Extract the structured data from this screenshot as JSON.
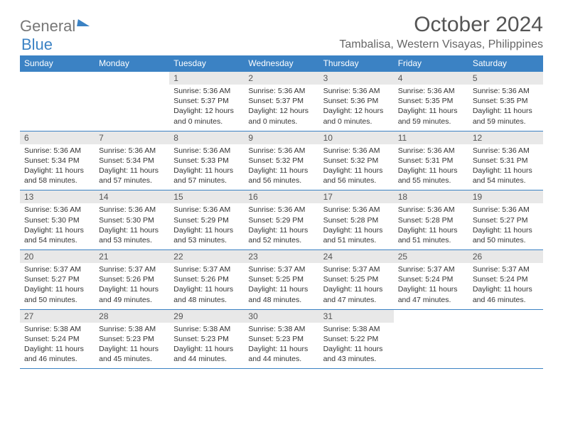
{
  "brand": {
    "part1": "General",
    "part2": "Blue"
  },
  "title": "October 2024",
  "location": "Tambalisa, Western Visayas, Philippines",
  "styling": {
    "header_bg": "#3b82c4",
    "header_text": "#ffffff",
    "daynum_bg": "#e8e8e8",
    "daynum_color": "#555555",
    "body_text": "#333333",
    "title_color": "#555555",
    "subtitle_color": "#666666",
    "week_border": "#3b82c4",
    "body_fontsize": 10.5,
    "header_fontsize": 12,
    "title_fontsize": 30,
    "subtitle_fontsize": 16
  },
  "day_headers": [
    "Sunday",
    "Monday",
    "Tuesday",
    "Wednesday",
    "Thursday",
    "Friday",
    "Saturday"
  ],
  "weeks": [
    [
      {
        "n": "",
        "sr": "",
        "ss": "",
        "dl": ""
      },
      {
        "n": "",
        "sr": "",
        "ss": "",
        "dl": ""
      },
      {
        "n": "1",
        "sr": "Sunrise: 5:36 AM",
        "ss": "Sunset: 5:37 PM",
        "dl": "Daylight: 12 hours and 0 minutes."
      },
      {
        "n": "2",
        "sr": "Sunrise: 5:36 AM",
        "ss": "Sunset: 5:37 PM",
        "dl": "Daylight: 12 hours and 0 minutes."
      },
      {
        "n": "3",
        "sr": "Sunrise: 5:36 AM",
        "ss": "Sunset: 5:36 PM",
        "dl": "Daylight: 12 hours and 0 minutes."
      },
      {
        "n": "4",
        "sr": "Sunrise: 5:36 AM",
        "ss": "Sunset: 5:35 PM",
        "dl": "Daylight: 11 hours and 59 minutes."
      },
      {
        "n": "5",
        "sr": "Sunrise: 5:36 AM",
        "ss": "Sunset: 5:35 PM",
        "dl": "Daylight: 11 hours and 59 minutes."
      }
    ],
    [
      {
        "n": "6",
        "sr": "Sunrise: 5:36 AM",
        "ss": "Sunset: 5:34 PM",
        "dl": "Daylight: 11 hours and 58 minutes."
      },
      {
        "n": "7",
        "sr": "Sunrise: 5:36 AM",
        "ss": "Sunset: 5:34 PM",
        "dl": "Daylight: 11 hours and 57 minutes."
      },
      {
        "n": "8",
        "sr": "Sunrise: 5:36 AM",
        "ss": "Sunset: 5:33 PM",
        "dl": "Daylight: 11 hours and 57 minutes."
      },
      {
        "n": "9",
        "sr": "Sunrise: 5:36 AM",
        "ss": "Sunset: 5:32 PM",
        "dl": "Daylight: 11 hours and 56 minutes."
      },
      {
        "n": "10",
        "sr": "Sunrise: 5:36 AM",
        "ss": "Sunset: 5:32 PM",
        "dl": "Daylight: 11 hours and 56 minutes."
      },
      {
        "n": "11",
        "sr": "Sunrise: 5:36 AM",
        "ss": "Sunset: 5:31 PM",
        "dl": "Daylight: 11 hours and 55 minutes."
      },
      {
        "n": "12",
        "sr": "Sunrise: 5:36 AM",
        "ss": "Sunset: 5:31 PM",
        "dl": "Daylight: 11 hours and 54 minutes."
      }
    ],
    [
      {
        "n": "13",
        "sr": "Sunrise: 5:36 AM",
        "ss": "Sunset: 5:30 PM",
        "dl": "Daylight: 11 hours and 54 minutes."
      },
      {
        "n": "14",
        "sr": "Sunrise: 5:36 AM",
        "ss": "Sunset: 5:30 PM",
        "dl": "Daylight: 11 hours and 53 minutes."
      },
      {
        "n": "15",
        "sr": "Sunrise: 5:36 AM",
        "ss": "Sunset: 5:29 PM",
        "dl": "Daylight: 11 hours and 53 minutes."
      },
      {
        "n": "16",
        "sr": "Sunrise: 5:36 AM",
        "ss": "Sunset: 5:29 PM",
        "dl": "Daylight: 11 hours and 52 minutes."
      },
      {
        "n": "17",
        "sr": "Sunrise: 5:36 AM",
        "ss": "Sunset: 5:28 PM",
        "dl": "Daylight: 11 hours and 51 minutes."
      },
      {
        "n": "18",
        "sr": "Sunrise: 5:36 AM",
        "ss": "Sunset: 5:28 PM",
        "dl": "Daylight: 11 hours and 51 minutes."
      },
      {
        "n": "19",
        "sr": "Sunrise: 5:36 AM",
        "ss": "Sunset: 5:27 PM",
        "dl": "Daylight: 11 hours and 50 minutes."
      }
    ],
    [
      {
        "n": "20",
        "sr": "Sunrise: 5:37 AM",
        "ss": "Sunset: 5:27 PM",
        "dl": "Daylight: 11 hours and 50 minutes."
      },
      {
        "n": "21",
        "sr": "Sunrise: 5:37 AM",
        "ss": "Sunset: 5:26 PM",
        "dl": "Daylight: 11 hours and 49 minutes."
      },
      {
        "n": "22",
        "sr": "Sunrise: 5:37 AM",
        "ss": "Sunset: 5:26 PM",
        "dl": "Daylight: 11 hours and 48 minutes."
      },
      {
        "n": "23",
        "sr": "Sunrise: 5:37 AM",
        "ss": "Sunset: 5:25 PM",
        "dl": "Daylight: 11 hours and 48 minutes."
      },
      {
        "n": "24",
        "sr": "Sunrise: 5:37 AM",
        "ss": "Sunset: 5:25 PM",
        "dl": "Daylight: 11 hours and 47 minutes."
      },
      {
        "n": "25",
        "sr": "Sunrise: 5:37 AM",
        "ss": "Sunset: 5:24 PM",
        "dl": "Daylight: 11 hours and 47 minutes."
      },
      {
        "n": "26",
        "sr": "Sunrise: 5:37 AM",
        "ss": "Sunset: 5:24 PM",
        "dl": "Daylight: 11 hours and 46 minutes."
      }
    ],
    [
      {
        "n": "27",
        "sr": "Sunrise: 5:38 AM",
        "ss": "Sunset: 5:24 PM",
        "dl": "Daylight: 11 hours and 46 minutes."
      },
      {
        "n": "28",
        "sr": "Sunrise: 5:38 AM",
        "ss": "Sunset: 5:23 PM",
        "dl": "Daylight: 11 hours and 45 minutes."
      },
      {
        "n": "29",
        "sr": "Sunrise: 5:38 AM",
        "ss": "Sunset: 5:23 PM",
        "dl": "Daylight: 11 hours and 44 minutes."
      },
      {
        "n": "30",
        "sr": "Sunrise: 5:38 AM",
        "ss": "Sunset: 5:23 PM",
        "dl": "Daylight: 11 hours and 44 minutes."
      },
      {
        "n": "31",
        "sr": "Sunrise: 5:38 AM",
        "ss": "Sunset: 5:22 PM",
        "dl": "Daylight: 11 hours and 43 minutes."
      },
      {
        "n": "",
        "sr": "",
        "ss": "",
        "dl": ""
      },
      {
        "n": "",
        "sr": "",
        "ss": "",
        "dl": ""
      }
    ]
  ]
}
